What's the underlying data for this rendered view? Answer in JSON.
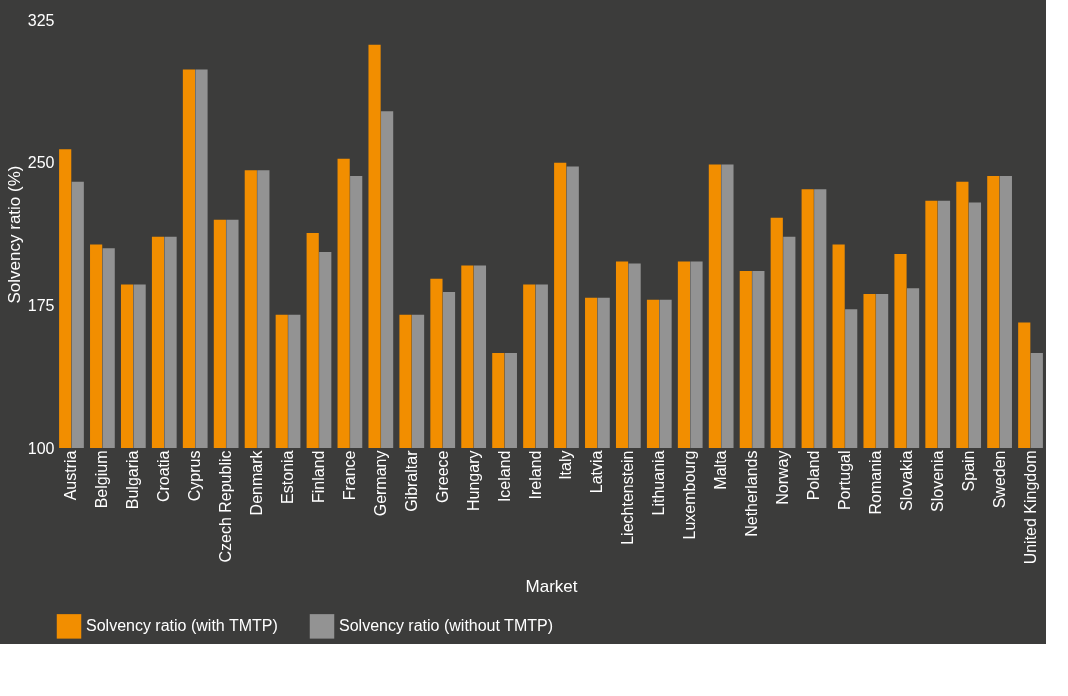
{
  "chart_data": {
    "type": "bar",
    "xlabel": "Market",
    "ylabel": "Solvency ratio (%)",
    "categories": [
      "Austria",
      "Belgium",
      "Bulgaria",
      "Croatia",
      "Cyprus",
      "Czech Republic",
      "Denmark",
      "Estonia",
      "Finland",
      "France",
      "Germany",
      "Gibraltar",
      "Greece",
      "Hungary",
      "Iceland",
      "Ireland",
      "Italy",
      "Latvia",
      "Liechtenstein",
      "Lithuania",
      "Luxembourg",
      "Malta",
      "Netherlands",
      "Norway",
      "Poland",
      "Portugal",
      "Romania",
      "Slovakia",
      "Slovenia",
      "Spain",
      "Sweden",
      "United Kingdom"
    ],
    "series": [
      {
        "name": "Solvency ratio (with TMTP)",
        "color": "#f28e00",
        "values": [
          257,
          207,
          186,
          211,
          299,
          220,
          246,
          170,
          213,
          252,
          312,
          170,
          189,
          196,
          150,
          186,
          250,
          179,
          198,
          178,
          198,
          249,
          193,
          221,
          236,
          207,
          181,
          202,
          230,
          240,
          243,
          166
        ]
      },
      {
        "name": "Solvency ratio (without TMTP)",
        "color": "#939393",
        "values": [
          240,
          205,
          186,
          211,
          299,
          220,
          246,
          170,
          203,
          243,
          277,
          170,
          182,
          196,
          150,
          186,
          248,
          179,
          197,
          178,
          198,
          249,
          193,
          211,
          236,
          173,
          181,
          184,
          230,
          229,
          243,
          150
        ]
      }
    ],
    "ylim": [
      100,
      325
    ],
    "yticks": [
      100,
      175,
      250,
      325
    ],
    "grid": false,
    "legend": "bottom"
  }
}
